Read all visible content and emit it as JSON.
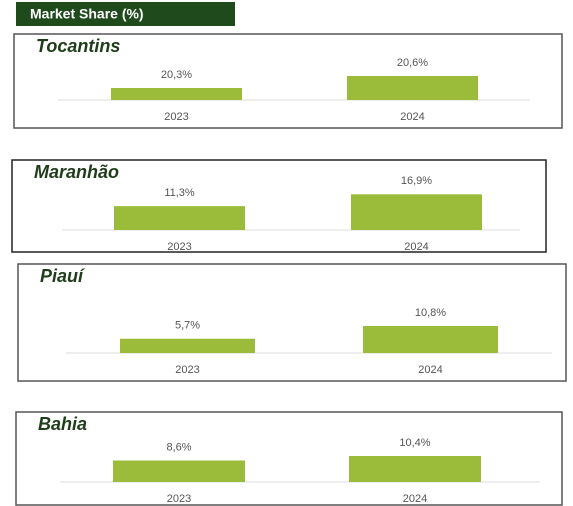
{
  "header": {
    "title": "Market Share (%)"
  },
  "chart_data": [
    {
      "type": "bar",
      "title": "Tocantins",
      "categories": [
        "2023",
        "2024"
      ],
      "values": [
        20.3,
        20.6
      ],
      "value_labels": [
        "20,3%",
        "20,6%"
      ],
      "color": "#9bbb3a",
      "ylim": [
        20,
        20.7
      ]
    },
    {
      "type": "bar",
      "title": "Maranhão",
      "categories": [
        "2023",
        "2024"
      ],
      "values": [
        11.3,
        16.9
      ],
      "value_labels": [
        "11,3%",
        "16,9%"
      ],
      "color": "#9bbb3a",
      "ylim": [
        0,
        18
      ]
    },
    {
      "type": "bar",
      "title": "Piauí",
      "categories": [
        "2023",
        "2024"
      ],
      "values": [
        5.7,
        10.8
      ],
      "value_labels": [
        "5,7%",
        "10,8%"
      ],
      "color": "#9bbb3a",
      "ylim": [
        0,
        12
      ]
    },
    {
      "type": "bar",
      "title": "Bahia",
      "categories": [
        "2023",
        "2024"
      ],
      "values": [
        8.6,
        10.4
      ],
      "value_labels": [
        "8,6%",
        "10,4%"
      ],
      "color": "#9bbb3a",
      "ylim": [
        0,
        12
      ]
    }
  ]
}
